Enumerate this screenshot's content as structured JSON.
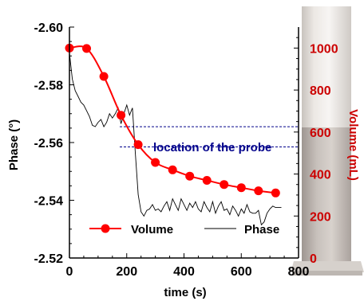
{
  "chart_data": {
    "type": "line",
    "xlabel": "time (s)",
    "ylabel_left": "Phase (°)",
    "ylabel_right": "Volume (mL)",
    "xlim": [
      0,
      800
    ],
    "ylim_left": [
      -2.6,
      -2.52
    ],
    "ylim_right": [
      0,
      1100
    ],
    "x_ticks": [
      "0",
      "200",
      "400",
      "600",
      "800"
    ],
    "y_left_ticks": [
      "-2.52",
      "-2.54",
      "-2.56",
      "-2.58",
      "-2.60"
    ],
    "y_right_ticks": [
      "0",
      "200",
      "400",
      "600",
      "800",
      "1000"
    ],
    "annotation": "location of  the probe",
    "probe_band_left": [
      -2.5585,
      -2.5655
    ],
    "grid": false,
    "legend_position": "bottom",
    "colors": {
      "volume": "#ff0000",
      "phase": "#000000",
      "right_axis": "#cc0000",
      "annotation": "#00008b"
    },
    "series": [
      {
        "name": "Volume",
        "axis": "right",
        "marker": "circle",
        "x": [
          0,
          60,
          120,
          180,
          240,
          300,
          360,
          420,
          480,
          540,
          600,
          660,
          720
        ],
        "y": [
          1000,
          998,
          865,
          680,
          540,
          455,
          420,
          390,
          370,
          350,
          335,
          320,
          310
        ]
      },
      {
        "name": "Phase",
        "axis": "left",
        "marker": "none",
        "x": [
          0,
          10,
          20,
          30,
          40,
          50,
          60,
          70,
          80,
          90,
          100,
          110,
          120,
          130,
          140,
          150,
          160,
          170,
          180,
          190,
          200,
          210,
          220,
          230,
          240,
          250,
          260,
          270,
          280,
          290,
          300,
          310,
          320,
          330,
          340,
          350,
          360,
          370,
          380,
          390,
          400,
          410,
          420,
          430,
          440,
          450,
          460,
          470,
          480,
          490,
          500,
          510,
          520,
          530,
          540,
          550,
          560,
          570,
          580,
          590,
          600,
          610,
          620,
          630,
          640,
          650,
          660,
          670,
          680,
          690,
          700,
          710,
          720,
          730,
          740
        ],
        "y": [
          -2.591,
          -2.582,
          -2.578,
          -2.576,
          -2.574,
          -2.573,
          -2.571,
          -2.569,
          -2.566,
          -2.5655,
          -2.567,
          -2.568,
          -2.5655,
          -2.567,
          -2.57,
          -2.5685,
          -2.57,
          -2.572,
          -2.5665,
          -2.57,
          -2.573,
          -2.5695,
          -2.572,
          -2.5565,
          -2.542,
          -2.536,
          -2.5345,
          -2.5365,
          -2.537,
          -2.5385,
          -2.5365,
          -2.537,
          -2.536,
          -2.538,
          -2.5395,
          -2.5365,
          -2.5405,
          -2.5385,
          -2.5365,
          -2.5405,
          -2.5385,
          -2.5365,
          -2.539,
          -2.5375,
          -2.5395,
          -2.537,
          -2.536,
          -2.5395,
          -2.5375,
          -2.536,
          -2.5395,
          -2.5355,
          -2.538,
          -2.5395,
          -2.5365,
          -2.537,
          -2.535,
          -2.538,
          -2.5365,
          -2.5345,
          -2.537,
          -2.5355,
          -2.5385,
          -2.536,
          -2.5355,
          -2.5355,
          -2.5365,
          -2.5315,
          -2.5325,
          -2.5355,
          -2.537,
          -2.538,
          -2.5375,
          -2.5375,
          -2.5375
        ]
      }
    ]
  }
}
